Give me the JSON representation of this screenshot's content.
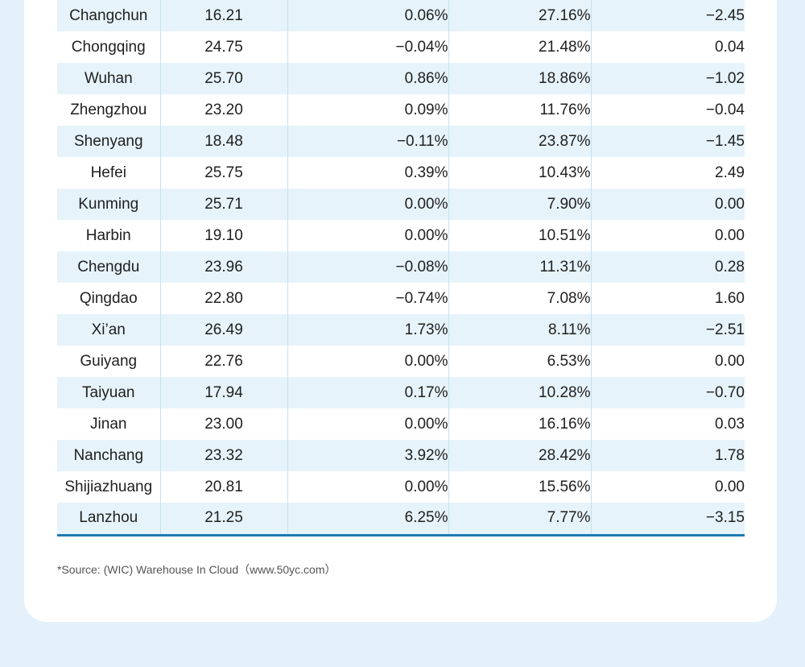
{
  "table": {
    "rows": [
      {
        "city": "Changchun",
        "v1": "16.21",
        "v2": "0.06%",
        "v3": "27.16%",
        "v4": "−2.45"
      },
      {
        "city": "Chongqing",
        "v1": "24.75",
        "v2": "−0.04%",
        "v3": "21.48%",
        "v4": "0.04"
      },
      {
        "city": "Wuhan",
        "v1": "25.70",
        "v2": "0.86%",
        "v3": "18.86%",
        "v4": "−1.02"
      },
      {
        "city": "Zhengzhou",
        "v1": "23.20",
        "v2": "0.09%",
        "v3": "11.76%",
        "v4": "−0.04"
      },
      {
        "city": "Shenyang",
        "v1": "18.48",
        "v2": "−0.11%",
        "v3": "23.87%",
        "v4": "−1.45"
      },
      {
        "city": "Hefei",
        "v1": "25.75",
        "v2": "0.39%",
        "v3": "10.43%",
        "v4": "2.49"
      },
      {
        "city": "Kunming",
        "v1": "25.71",
        "v2": "0.00%",
        "v3": "7.90%",
        "v4": "0.00"
      },
      {
        "city": "Harbin",
        "v1": "19.10",
        "v2": "0.00%",
        "v3": "10.51%",
        "v4": "0.00"
      },
      {
        "city": "Chengdu",
        "v1": "23.96",
        "v2": "−0.08%",
        "v3": "11.31%",
        "v4": "0.28"
      },
      {
        "city": "Qingdao",
        "v1": "22.80",
        "v2": "−0.74%",
        "v3": "7.08%",
        "v4": "1.60"
      },
      {
        "city": "Xi’an",
        "v1": "26.49",
        "v2": "1.73%",
        "v3": "8.11%",
        "v4": "−2.51"
      },
      {
        "city": "Guiyang",
        "v1": "22.76",
        "v2": "0.00%",
        "v3": "6.53%",
        "v4": "0.00"
      },
      {
        "city": "Taiyuan",
        "v1": "17.94",
        "v2": "0.17%",
        "v3": "10.28%",
        "v4": "−0.70"
      },
      {
        "city": "Jinan",
        "v1": "23.00",
        "v2": "0.00%",
        "v3": "16.16%",
        "v4": "0.03"
      },
      {
        "city": "Nanchang",
        "v1": "23.32",
        "v2": "3.92%",
        "v3": "28.42%",
        "v4": "1.78"
      },
      {
        "city": "Shijiazhuang",
        "v1": "20.81",
        "v2": "0.00%",
        "v3": "15.56%",
        "v4": "0.00"
      },
      {
        "city": "Lanzhou",
        "v1": "21.25",
        "v2": "6.25%",
        "v3": "7.77%",
        "v4": "−3.15"
      }
    ]
  },
  "footer": {
    "source": "*Source: (WIC) Warehouse In Cloud（www.50yc.com）"
  },
  "colors": {
    "page_bg": "#e4f1fb",
    "stripe": "#e6f3fa",
    "divider": "#c5e1f1",
    "accent": "#1c7bb0"
  }
}
